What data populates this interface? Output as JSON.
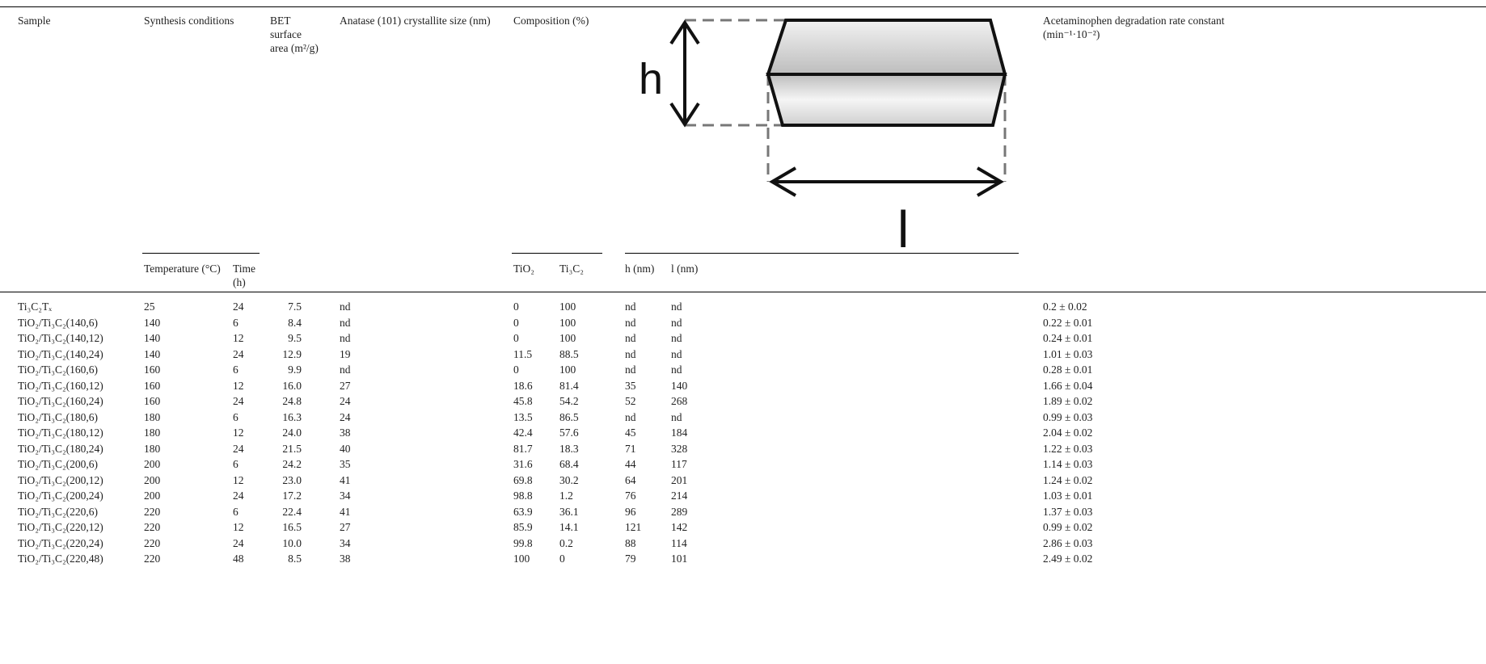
{
  "header": {
    "sample": "Sample",
    "synthesis": "Synthesis conditions",
    "bet": "BET surface area (m²/g)",
    "anatase": "Anatase (101) crystallite size (nm)",
    "composition": "Composition (%)",
    "rate": "Acetaminophen degradation rate constant (min⁻¹·10⁻²)"
  },
  "subheader": {
    "temperature": "Temperature (°C)",
    "time": "Time (h)",
    "tio2": "TiO₂",
    "ti3c2": "Ti₃C₂",
    "h": "h (nm)",
    "l": "l (nm)"
  },
  "diagram": {
    "h": "h",
    "l": "l"
  },
  "table": {
    "rows": [
      [
        "Ti₃C₂Tₓ",
        "25",
        "24",
        "7.5",
        "nd",
        "0",
        "100",
        "nd",
        "nd",
        "0.2 ± 0.02"
      ],
      [
        "TiO₂/Ti₃C₂(140,6)",
        "140",
        "6",
        "8.4",
        "nd",
        "0",
        "100",
        "nd",
        "nd",
        "0.22 ± 0.01"
      ],
      [
        "TiO₂/Ti₃C₂(140,12)",
        "140",
        "12",
        "9.5",
        "nd",
        "0",
        "100",
        "nd",
        "nd",
        "0.24 ± 0.01"
      ],
      [
        "TiO₂/Ti₃C₂(140,24)",
        "140",
        "24",
        "12.9",
        "19",
        "11.5",
        "88.5",
        "nd",
        "nd",
        "1.01 ± 0.03"
      ],
      [
        "TiO₂/Ti₃C₂(160,6)",
        "160",
        "6",
        "9.9",
        "nd",
        "0",
        "100",
        "nd",
        "nd",
        "0.28 ± 0.01"
      ],
      [
        "TiO₂/Ti₃C₂(160,12)",
        "160",
        "12",
        "16.0",
        "27",
        "18.6",
        "81.4",
        "35",
        "140",
        "1.66 ± 0.04"
      ],
      [
        "TiO₂/Ti₃C₂(160,24)",
        "160",
        "24",
        "24.8",
        "24",
        "45.8",
        "54.2",
        "52",
        "268",
        "1.89 ± 0.02"
      ],
      [
        "TiO₂/Ti₃C₂(180,6)",
        "180",
        "6",
        "16.3",
        "24",
        "13.5",
        "86.5",
        "nd",
        "nd",
        "0.99 ± 0.03"
      ],
      [
        "TiO₂/Ti₃C₂(180,12)",
        "180",
        "12",
        "24.0",
        "38",
        "42.4",
        "57.6",
        "45",
        "184",
        "2.04 ± 0.02"
      ],
      [
        "TiO₂/Ti₃C₂(180,24)",
        "180",
        "24",
        "21.5",
        "40",
        "81.7",
        "18.3",
        "71",
        "328",
        "1.22 ± 0.03"
      ],
      [
        "TiO₂/Ti₃C₂(200,6)",
        "200",
        "6",
        "24.2",
        "35",
        "31.6",
        "68.4",
        "44",
        "117",
        "1.14 ± 0.03"
      ],
      [
        "TiO₂/Ti₃C₂(200,12)",
        "200",
        "12",
        "23.0",
        "41",
        "69.8",
        "30.2",
        "64",
        "201",
        "1.24 ± 0.02"
      ],
      [
        "TiO₂/Ti₃C₂(200,24)",
        "200",
        "24",
        "17.2",
        "34",
        "98.8",
        "1.2",
        "76",
        "214",
        "1.03 ± 0.01"
      ],
      [
        "TiO₂/Ti₃C₂(220,6)",
        "220",
        "6",
        "22.4",
        "41",
        "63.9",
        "36.1",
        "96",
        "289",
        "1.37 ± 0.03"
      ],
      [
        "TiO₂/Ti₃C₂(220,12)",
        "220",
        "12",
        "16.5",
        "27",
        "85.9",
        "14.1",
        "121",
        "142",
        "0.99 ± 0.02"
      ],
      [
        "TiO₂/Ti₃C₂(220,24)",
        "220",
        "24",
        "10.0",
        "34",
        "99.8",
        "0.2",
        "88",
        "114",
        "2.86 ± 0.03"
      ],
      [
        "TiO₂/Ti₃C₂(220,48)",
        "220",
        "48",
        "8.5",
        "38",
        "100",
        "0",
        "79",
        "101",
        "2.49 ± 0.02"
      ]
    ]
  }
}
